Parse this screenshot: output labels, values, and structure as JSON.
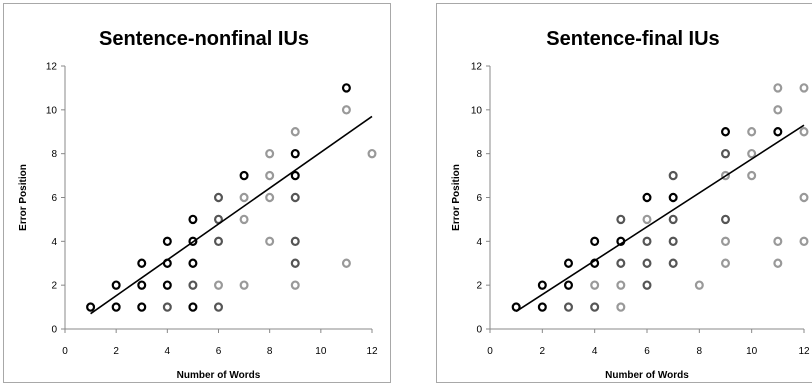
{
  "chart_data": [
    {
      "type": "scatter",
      "title": "Sentence-nonfinal IUs",
      "xlabel": "Number of Words",
      "ylabel": "Error Position",
      "xlim": [
        0,
        12
      ],
      "ylim": [
        0,
        12
      ],
      "xticks": [
        0,
        2,
        4,
        6,
        8,
        10,
        12
      ],
      "yticks": [
        0,
        2,
        4,
        6,
        8,
        10,
        12
      ],
      "grid": false,
      "legend": "none",
      "trendline": {
        "x": [
          1,
          12
        ],
        "y": [
          0.7,
          9.7
        ]
      },
      "series": [
        {
          "color": "#000000",
          "points": [
            [
              1,
              1
            ],
            [
              2,
              1
            ],
            [
              2,
              2
            ],
            [
              3,
              1
            ],
            [
              3,
              2
            ],
            [
              3,
              3
            ],
            [
              4,
              2
            ],
            [
              4,
              3
            ],
            [
              4,
              4
            ],
            [
              5,
              1
            ],
            [
              5,
              3
            ],
            [
              5,
              4
            ],
            [
              5,
              5
            ],
            [
              7,
              7
            ],
            [
              9,
              7
            ],
            [
              9,
              8
            ],
            [
              11,
              11
            ]
          ]
        },
        {
          "color": "#555555",
          "points": [
            [
              4,
              1
            ],
            [
              5,
              2
            ],
            [
              6,
              1
            ],
            [
              6,
              4
            ],
            [
              6,
              5
            ],
            [
              6,
              6
            ],
            [
              9,
              3
            ],
            [
              9,
              4
            ],
            [
              9,
              6
            ]
          ]
        },
        {
          "color": "#999999",
          "points": [
            [
              6,
              2
            ],
            [
              7,
              2
            ],
            [
              7,
              5
            ],
            [
              7,
              6
            ],
            [
              8,
              4
            ],
            [
              8,
              6
            ],
            [
              8,
              7
            ],
            [
              8,
              8
            ],
            [
              9,
              2
            ],
            [
              9,
              9
            ],
            [
              11,
              3
            ],
            [
              11,
              10
            ],
            [
              12,
              8
            ]
          ]
        }
      ]
    },
    {
      "type": "scatter",
      "title": "Sentence-final IUs",
      "xlabel": "Number of Words",
      "ylabel": "Error Position",
      "xlim": [
        0,
        12
      ],
      "ylim": [
        0,
        12
      ],
      "xticks": [
        0,
        2,
        4,
        6,
        8,
        10,
        12
      ],
      "yticks": [
        0,
        2,
        4,
        6,
        8,
        10,
        12
      ],
      "grid": false,
      "legend": "none",
      "trendline": {
        "x": [
          1,
          12
        ],
        "y": [
          0.8,
          9.3
        ]
      },
      "series": [
        {
          "color": "#000000",
          "points": [
            [
              1,
              1
            ],
            [
              2,
              1
            ],
            [
              2,
              2
            ],
            [
              3,
              2
            ],
            [
              3,
              3
            ],
            [
              4,
              3
            ],
            [
              4,
              4
            ],
            [
              5,
              4
            ],
            [
              6,
              6
            ],
            [
              7,
              6
            ],
            [
              9,
              9
            ],
            [
              11,
              9
            ]
          ]
        },
        {
          "color": "#555555",
          "points": [
            [
              3,
              1
            ],
            [
              4,
              1
            ],
            [
              5,
              3
            ],
            [
              5,
              5
            ],
            [
              6,
              2
            ],
            [
              6,
              3
            ],
            [
              6,
              4
            ],
            [
              7,
              3
            ],
            [
              7,
              4
            ],
            [
              7,
              5
            ],
            [
              7,
              7
            ],
            [
              9,
              5
            ],
            [
              9,
              8
            ]
          ]
        },
        {
          "color": "#999999",
          "points": [
            [
              4,
              2
            ],
            [
              5,
              1
            ],
            [
              5,
              2
            ],
            [
              6,
              5
            ],
            [
              8,
              2
            ],
            [
              9,
              3
            ],
            [
              9,
              4
            ],
            [
              9,
              7
            ],
            [
              10,
              7
            ],
            [
              10,
              8
            ],
            [
              10,
              9
            ],
            [
              11,
              3
            ],
            [
              11,
              4
            ],
            [
              11,
              10
            ],
            [
              11,
              11
            ],
            [
              12,
              4
            ],
            [
              12,
              6
            ],
            [
              12,
              9
            ],
            [
              12,
              11
            ]
          ]
        }
      ]
    }
  ]
}
